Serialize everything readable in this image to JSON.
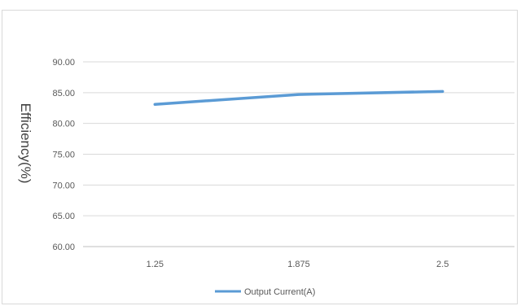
{
  "chart_data": {
    "type": "line",
    "title": "",
    "xlabel": "",
    "ylabel": "Efficiency(%)",
    "categories": [
      "1.25",
      "1.875",
      "2.5"
    ],
    "series": [
      {
        "name": "Output Current(A)",
        "values": [
          83.1,
          84.7,
          85.2
        ],
        "color": "#5b9bd5"
      }
    ],
    "ylim": [
      60,
      90
    ],
    "yticks": [
      "60.00",
      "65.00",
      "70.00",
      "75.00",
      "80.00",
      "85.00",
      "90.00"
    ],
    "grid": true,
    "legend_position": "bottom"
  }
}
